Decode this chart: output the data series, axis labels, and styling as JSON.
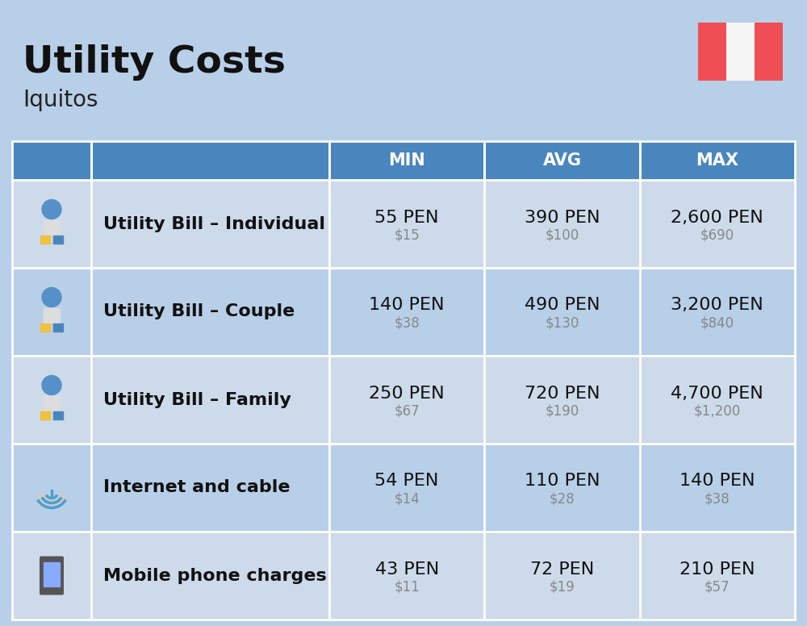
{
  "title": "Utility Costs",
  "subtitle": "Iquitos",
  "background_color": "#b8cfe8",
  "header_color": "#4a86be",
  "row_color_light": "#cddaea",
  "row_color_dark": "#b8cfe8",
  "header_text_color": "#ffffff",
  "header_font_size": 15,
  "title_font_size": 34,
  "subtitle_font_size": 20,
  "columns": [
    "MIN",
    "AVG",
    "MAX"
  ],
  "rows": [
    {
      "label": "Utility Bill – Individual",
      "min_pen": "55 PEN",
      "min_usd": "$15",
      "avg_pen": "390 PEN",
      "avg_usd": "$100",
      "max_pen": "2,600 PEN",
      "max_usd": "$690"
    },
    {
      "label": "Utility Bill – Couple",
      "min_pen": "140 PEN",
      "min_usd": "$38",
      "avg_pen": "490 PEN",
      "avg_usd": "$130",
      "max_pen": "3,200 PEN",
      "max_usd": "$840"
    },
    {
      "label": "Utility Bill – Family",
      "min_pen": "250 PEN",
      "min_usd": "$67",
      "avg_pen": "720 PEN",
      "avg_usd": "$190",
      "max_pen": "4,700 PEN",
      "max_usd": "$1,200"
    },
    {
      "label": "Internet and cable",
      "min_pen": "54 PEN",
      "min_usd": "$14",
      "avg_pen": "110 PEN",
      "avg_usd": "$28",
      "max_pen": "140 PEN",
      "max_usd": "$38"
    },
    {
      "label": "Mobile phone charges",
      "min_pen": "43 PEN",
      "min_usd": "$11",
      "avg_pen": "72 PEN",
      "avg_usd": "$19",
      "max_pen": "210 PEN",
      "max_usd": "$57"
    }
  ],
  "flag_red": "#f04e55",
  "flag_white": "#f5f5f5",
  "pen_font_size": 16,
  "usd_font_size": 12,
  "label_font_size": 16
}
